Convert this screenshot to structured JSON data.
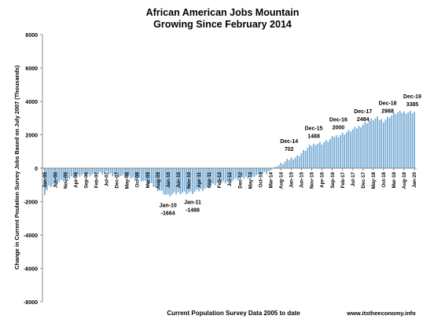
{
  "chart_data": {
    "type": "bar",
    "title": "African American Jobs Mountain",
    "subtitle": "Growing Since February 2014",
    "ylabel": "Change in Current Poulation Survey Jobs Based on July 2007  (Thousands)",
    "xlabel": "Current Population Survey Data 2005 to date",
    "source": "www.itstheeconomy.info",
    "ylim": [
      -8000,
      8000
    ],
    "yticks": [
      -8000,
      -6000,
      -4000,
      -2000,
      0,
      2000,
      4000,
      6000,
      8000
    ],
    "grid": false,
    "bar_color": "#7aaed6",
    "x_tick_labels": [
      "Jan-05",
      "Jun-05",
      "Nov-05",
      "Apr-06",
      "Sep-06",
      "Feb-07",
      "Jul-07",
      "Dec-07",
      "May-08",
      "Oct-08",
      "Mar-09",
      "Aug-09",
      "Jan-10",
      "Jun-10",
      "Nov-10",
      "Apr-11",
      "Sep-11",
      "Feb-12",
      "Jul-12",
      "Dec-12",
      "May-13",
      "Oct-13",
      "Mar-14",
      "Aug-14",
      "Jan-15",
      "Jun-15",
      "Nov-15",
      "Apr-16",
      "Sep-16",
      "Feb-17",
      "Jul-17",
      "Dec-17",
      "May-18",
      "Oct-18",
      "Mar-19",
      "Aug-19",
      "Jan-20"
    ],
    "tick_every": 5,
    "segments": [
      [
        0,
        -1500
      ],
      [
        2,
        -1100
      ],
      [
        6,
        -900
      ],
      [
        14,
        -500
      ],
      [
        24,
        -350
      ],
      [
        30,
        -300
      ],
      [
        38,
        -500
      ],
      [
        46,
        -650
      ],
      [
        52,
        -1000
      ],
      [
        60,
        -1664
      ],
      [
        66,
        -1450
      ],
      [
        72,
        -1488
      ],
      [
        76,
        -1300
      ],
      [
        84,
        -900
      ],
      [
        92,
        -700
      ],
      [
        98,
        -550
      ],
      [
        104,
        -400
      ],
      [
        108,
        -300
      ],
      [
        110,
        -100
      ],
      [
        112,
        50
      ],
      [
        116,
        300
      ],
      [
        120,
        600
      ],
      [
        123,
        702
      ],
      [
        126,
        1000
      ],
      [
        129,
        1300
      ],
      [
        132,
        1488
      ],
      [
        135,
        1500
      ],
      [
        138,
        1650
      ],
      [
        141,
        1900
      ],
      [
        144,
        2000
      ],
      [
        147,
        2150
      ],
      [
        150,
        2300
      ],
      [
        153,
        2484
      ],
      [
        156,
        2700
      ],
      [
        159,
        2900
      ],
      [
        162,
        2988
      ],
      [
        165,
        2850
      ],
      [
        168,
        3100
      ],
      [
        171,
        3300
      ],
      [
        174,
        3350
      ],
      [
        180,
        3385
      ]
    ],
    "annotations": [
      {
        "date": "Jan-10",
        "value": "-1664"
      },
      {
        "date": "Jan-11",
        "value": "-1488"
      },
      {
        "date": "Dec-14",
        "value": "702"
      },
      {
        "date": "Dec-15",
        "value": "1488"
      },
      {
        "date": "Dec-16",
        "value": "2000"
      },
      {
        "date": "Dec-17",
        "value": "2484"
      },
      {
        "date": "Dec-18",
        "value": "2988"
      },
      {
        "date": "Dec-19",
        "value": "3385"
      }
    ]
  }
}
